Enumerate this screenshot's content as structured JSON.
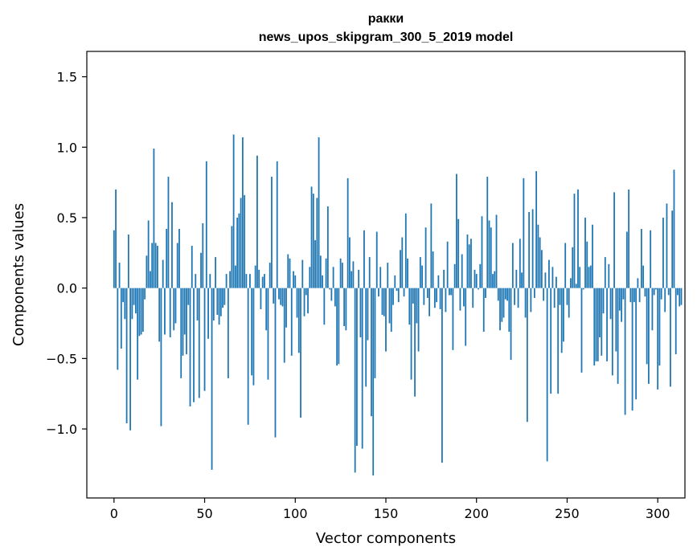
{
  "chart_data": {
    "type": "bar",
    "title": "ракки",
    "subtitle": "news_upos_skipgram_300_5_2019 model",
    "xlabel": "Vector components",
    "ylabel": "Components values",
    "xlim": [
      -15,
      315
    ],
    "ylim": [
      -1.49,
      1.68
    ],
    "xticks": [
      0,
      50,
      100,
      150,
      200,
      250,
      300
    ],
    "xtick_labels": [
      "0",
      "50",
      "100",
      "150",
      "200",
      "250",
      "300"
    ],
    "yticks": [
      -1.0,
      -0.5,
      0.0,
      0.5,
      1.0,
      1.5
    ],
    "ytick_labels": [
      "−1.0",
      "−0.5",
      "0.0",
      "0.5",
      "1.0",
      "1.5"
    ],
    "bar_color": "#1f77b4",
    "values": [
      0.41,
      0.7,
      -0.58,
      0.18,
      -0.43,
      -0.1,
      -0.22,
      -0.96,
      0.38,
      -1.01,
      -0.22,
      -0.12,
      -0.18,
      -0.65,
      -0.34,
      -0.33,
      -0.31,
      -0.08,
      0.23,
      0.48,
      0.12,
      0.32,
      0.99,
      0.32,
      0.3,
      -0.38,
      -0.98,
      0.2,
      -0.33,
      0.42,
      0.79,
      -0.35,
      0.61,
      -0.3,
      -0.25,
      0.32,
      0.42,
      -0.64,
      -0.48,
      -0.33,
      -0.47,
      -0.12,
      -0.84,
      0.3,
      -0.81,
      0.1,
      -0.23,
      -0.78,
      0.25,
      0.46,
      -0.73,
      0.9,
      -0.36,
      0.1,
      -1.29,
      -0.23,
      0.22,
      -0.19,
      -0.26,
      -0.2,
      -0.14,
      -0.12,
      0.1,
      -0.64,
      0.12,
      0.44,
      1.09,
      0.16,
      0.5,
      0.53,
      0.64,
      1.07,
      0.66,
      0.1,
      -0.97,
      0.1,
      -0.62,
      -0.69,
      0.16,
      0.94,
      0.13,
      -0.15,
      0.08,
      0.1,
      -0.3,
      -0.65,
      0.18,
      0.79,
      -0.11,
      -1.06,
      0.9,
      -0.08,
      -0.12,
      -0.13,
      -0.53,
      -0.28,
      0.24,
      0.21,
      -0.48,
      0.12,
      0.09,
      -0.21,
      -0.46,
      -0.92,
      0.2,
      -0.2,
      -0.05,
      -0.18,
      0.15,
      0.72,
      0.67,
      0.34,
      0.64,
      1.07,
      0.23,
      0.09,
      -0.26,
      0.21,
      0.58,
      -0.01,
      -0.09,
      0.15,
      -0.13,
      -0.55,
      -0.54,
      0.21,
      0.18,
      -0.27,
      -0.3,
      0.78,
      0.36,
      0.12,
      0.19,
      -1.31,
      -1.12,
      0.13,
      -0.35,
      -1.14,
      0.41,
      -0.7,
      -0.37,
      0.22,
      -0.91,
      -1.33,
      -0.64,
      0.4,
      -0.06,
      0.15,
      -0.19,
      -0.2,
      -0.45,
      0.18,
      -0.25,
      -0.31,
      -0.12,
      0.09,
      -0.02,
      -0.1,
      0.27,
      0.36,
      -0.06,
      0.53,
      0.21,
      -0.26,
      -0.65,
      -0.11,
      -0.77,
      -0.25,
      -0.45,
      0.22,
      0.16,
      -0.12,
      0.43,
      -0.07,
      -0.2,
      0.6,
      0.26,
      -0.14,
      -0.1,
      0.09,
      -0.15,
      -1.24,
      0.13,
      -0.17,
      0.33,
      -0.05,
      -0.05,
      -0.44,
      0.17,
      0.81,
      0.49,
      -0.16,
      0.24,
      -0.13,
      -0.41,
      0.38,
      0.31,
      0.35,
      -0.14,
      0.13,
      0.1,
      -0.01,
      0.17,
      0.51,
      -0.31,
      -0.07,
      0.79,
      0.48,
      0.43,
      0.1,
      0.12,
      0.52,
      -0.09,
      -0.3,
      -0.24,
      -0.21,
      -0.08,
      -0.09,
      -0.31,
      -0.51,
      0.32,
      -0.12,
      0.13,
      -0.14,
      0.35,
      0.11,
      0.78,
      -0.21,
      -0.95,
      0.54,
      -0.17,
      0.56,
      -0.07,
      0.83,
      0.45,
      0.36,
      0.27,
      -0.09,
      0.11,
      -1.23,
      0.2,
      -0.75,
      0.15,
      -0.14,
      0.08,
      -0.75,
      -0.12,
      -0.46,
      -0.38,
      0.32,
      -0.12,
      -0.21,
      0.07,
      0.29,
      0.67,
      0.03,
      0.7,
      0.15,
      -0.6,
      -0.01,
      0.5,
      0.33,
      0.15,
      0.16,
      0.45,
      -0.55,
      -0.52,
      -0.52,
      -0.35,
      -0.48,
      -0.18,
      0.22,
      -0.52,
      0.17,
      -0.22,
      -0.62,
      0.68,
      -0.45,
      -0.68,
      -0.16,
      -0.24,
      -0.08,
      -0.9,
      0.4,
      0.7,
      -0.1,
      -0.87,
      -0.1,
      -0.79,
      0.07,
      -0.1,
      0.42,
      0.16,
      -0.06,
      -0.54,
      -0.68,
      0.41,
      -0.3,
      -0.05,
      -0.01,
      -0.72,
      -0.55,
      -0.08,
      0.5,
      -0.17,
      0.6,
      -0.05,
      -0.7,
      0.55,
      0.84,
      -0.47,
      -0.05,
      -0.13,
      -0.12
    ]
  }
}
